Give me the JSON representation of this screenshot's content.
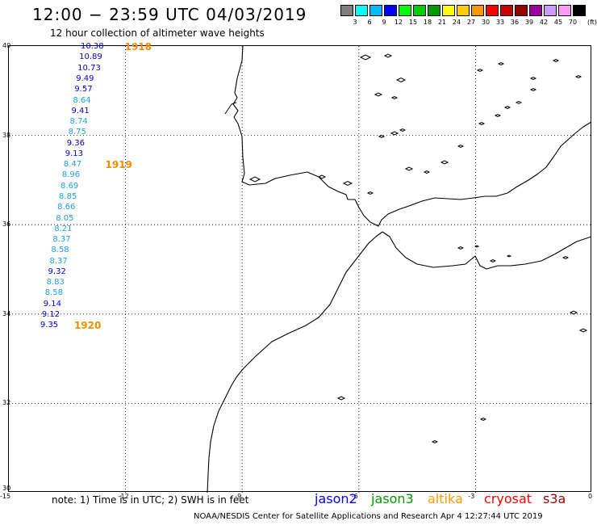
{
  "header": {
    "title": "12:00 − 23:59 UTC 04/03/2019",
    "subtitle": "12 hour collection of altimeter wave heights"
  },
  "legend": {
    "unit": "(ft)",
    "bins": [
      {
        "label": "3",
        "color": "#7f7f7f"
      },
      {
        "label": "6",
        "color": "#00ffff"
      },
      {
        "label": "9",
        "color": "#00bbff"
      },
      {
        "label": "12",
        "color": "#0000ff"
      },
      {
        "label": "15",
        "color": "#00ff00"
      },
      {
        "label": "18",
        "color": "#00cc00"
      },
      {
        "label": "21",
        "color": "#009900"
      },
      {
        "label": "24",
        "color": "#ffff00"
      },
      {
        "label": "27",
        "color": "#ffcc00"
      },
      {
        "label": "30",
        "color": "#ff9900"
      },
      {
        "label": "33",
        "color": "#ff0000"
      },
      {
        "label": "36",
        "color": "#cc0000"
      },
      {
        "label": "39",
        "color": "#990000"
      },
      {
        "label": "42",
        "color": "#990099"
      },
      {
        "label": "45",
        "color": "#cc99ff"
      },
      {
        "label": "70",
        "color": "#ff99ff"
      },
      {
        "label": "",
        "color": "#000000"
      }
    ]
  },
  "map": {
    "lat_range": [
      30,
      40
    ],
    "lon_range": [
      -15,
      0
    ],
    "lat_ticks": [
      "40",
      "38",
      "36",
      "34",
      "32",
      "30"
    ],
    "lon_ticks": [
      "-15",
      "-12",
      "-9",
      "-6",
      "-3",
      "0"
    ],
    "grid": "dotted"
  },
  "track": [
    {
      "value": "10.38",
      "lat": 39.96,
      "lon": -12.8,
      "color": "#0000cc"
    },
    {
      "value": "10.89",
      "lat": 39.72,
      "lon": -12.84,
      "color": "#0000cc"
    },
    {
      "value": "10.73",
      "lat": 39.48,
      "lon": -12.88,
      "color": "#0000cc"
    },
    {
      "value": "9.49",
      "lat": 39.24,
      "lon": -12.92,
      "color": "#0000cc"
    },
    {
      "value": "9.57",
      "lat": 39.0,
      "lon": -12.96,
      "color": "#0000cc"
    },
    {
      "value": "8.64",
      "lat": 38.76,
      "lon": -13.0,
      "color": "#1ca0e0"
    },
    {
      "value": "9.41",
      "lat": 38.52,
      "lon": -13.04,
      "color": "#0000cc"
    },
    {
      "value": "8.74",
      "lat": 38.28,
      "lon": -13.08,
      "color": "#1ca0e0"
    },
    {
      "value": "8.75",
      "lat": 38.04,
      "lon": -13.12,
      "color": "#1ca0e0"
    },
    {
      "value": "9.36",
      "lat": 37.8,
      "lon": -13.16,
      "color": "#0000cc"
    },
    {
      "value": "9.13",
      "lat": 37.56,
      "lon": -13.2,
      "color": "#0000cc"
    },
    {
      "value": "8.47",
      "lat": 37.32,
      "lon": -13.24,
      "color": "#1ca0e0"
    },
    {
      "value": "8.96",
      "lat": 37.08,
      "lon": -13.28,
      "color": "#1ca0e0"
    },
    {
      "value": "8.69",
      "lat": 36.84,
      "lon": -13.32,
      "color": "#1ca0e0"
    },
    {
      "value": "8.85",
      "lat": 36.6,
      "lon": -13.36,
      "color": "#1ca0e0"
    },
    {
      "value": "8.66",
      "lat": 36.36,
      "lon": -13.4,
      "color": "#1ca0e0"
    },
    {
      "value": "8.05",
      "lat": 36.12,
      "lon": -13.44,
      "color": "#1ca0e0"
    },
    {
      "value": "8.21",
      "lat": 35.88,
      "lon": -13.48,
      "color": "#1ca0e0"
    },
    {
      "value": "8.37",
      "lat": 35.64,
      "lon": -13.52,
      "color": "#1ca0e0"
    },
    {
      "value": "8.58",
      "lat": 35.4,
      "lon": -13.56,
      "color": "#1ca0e0"
    },
    {
      "value": "8.37",
      "lat": 35.16,
      "lon": -13.6,
      "color": "#1ca0e0"
    },
    {
      "value": "9.32",
      "lat": 34.92,
      "lon": -13.64,
      "color": "#0000cc"
    },
    {
      "value": "8.83",
      "lat": 34.68,
      "lon": -13.68,
      "color": "#1ca0e0"
    },
    {
      "value": "8.58",
      "lat": 34.44,
      "lon": -13.72,
      "color": "#1ca0e0"
    },
    {
      "value": "9.14",
      "lat": 34.2,
      "lon": -13.76,
      "color": "#0000cc"
    },
    {
      "value": "9.12",
      "lat": 33.96,
      "lon": -13.8,
      "color": "#0000cc"
    },
    {
      "value": "9.35",
      "lat": 33.72,
      "lon": -13.84,
      "color": "#0000cc"
    }
  ],
  "passes": [
    {
      "label": "1918",
      "lat": 39.96,
      "lon": -12.0
    },
    {
      "label": "1919",
      "lat": 37.32,
      "lon": -12.5
    },
    {
      "label": "1920",
      "lat": 33.72,
      "lon": -13.3
    }
  ],
  "footer": {
    "note": "note:  1) Time is in UTC;  2) SWH is in feet",
    "missions": [
      {
        "label": "jason2",
        "color": "#0000ff"
      },
      {
        "label": "jason3",
        "color": "#009900"
      },
      {
        "label": "altika",
        "color": "#ff9900"
      },
      {
        "label": "cryosat",
        "color": "#ff0000"
      },
      {
        "label": "s3a",
        "color": "#990000"
      }
    ],
    "credit": "NOAA/NESDIS Center for Satellite Applications and Research     Apr  4 12:27:44 UTC 2019"
  }
}
